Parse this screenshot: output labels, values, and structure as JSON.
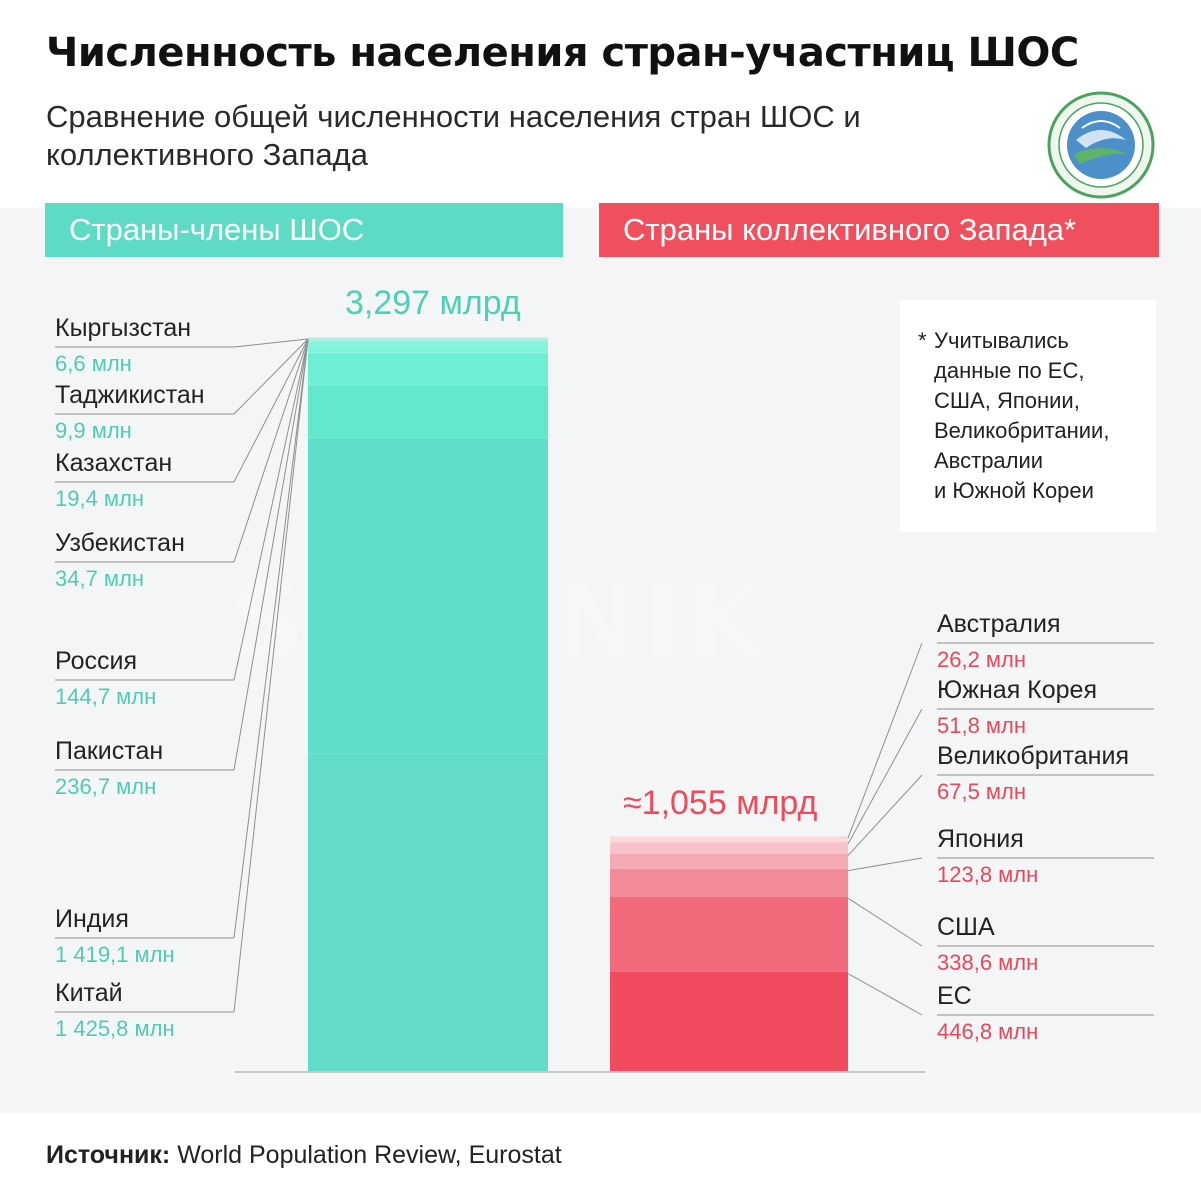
{
  "title": "Численность населения стран-участниц ШОС",
  "subtitle": "Сравнение общей численности населения стран ШОС и коллективного Запада",
  "headers": {
    "sco": "Страны-члены ШОС",
    "west": "Страны коллективного Запада*"
  },
  "note": {
    "star": "*",
    "text": "Учитывались\nданные по ЕС,\nСША, Японии,\nВеликобритании,\nАвстралии\nи Южной Кореи"
  },
  "watermark": "SPUTNIK",
  "source": {
    "label": "Источник:",
    "text": "World Population Review, Eurostat"
  },
  "colors": {
    "sco_header": "#5ddbc4",
    "west_header": "#f0505e",
    "sco_value": "#4fcbb4",
    "west_value": "#e8485a",
    "panel": "#f4f5f7"
  },
  "chart_data": {
    "type": "bar",
    "stacked": true,
    "unit": "млн",
    "stacks": [
      {
        "name": "Страны-члены ШОС",
        "total_label": "3,297 млрд",
        "total": 3297,
        "segments": [
          {
            "name": "Кыргызстан",
            "value": 6.6,
            "label": "6,6 млн",
            "color": "#bdf3e6"
          },
          {
            "name": "Таджикистан",
            "value": 9.9,
            "label": "9,9 млн",
            "color": "#9ff2e0"
          },
          {
            "name": "Казахстан",
            "value": 19.4,
            "label": "19,4 млн",
            "color": "#8cf3dc"
          },
          {
            "name": "Узбекистан",
            "value": 34.7,
            "label": "34,7 млн",
            "color": "#7ef4da"
          },
          {
            "name": "Россия",
            "value": 144.7,
            "label": "144,7 млн",
            "color": "#6eefd3"
          },
          {
            "name": "Пакистан",
            "value": 236.7,
            "label": "236,7 млн",
            "color": "#63e8cd"
          },
          {
            "name": "Индия",
            "value": 1419.1,
            "label": "1 419,1 млн",
            "color": "#5fdfc7"
          },
          {
            "name": "Китай",
            "value": 1425.8,
            "label": "1 425,8 млн",
            "color": "#61dcc6"
          }
        ]
      },
      {
        "name": "Страны коллективного Запада",
        "total_label": "≈1,055 млрд",
        "total": 1055,
        "segments": [
          {
            "name": "Австралия",
            "value": 26.2,
            "label": "26,2 млн",
            "color": "#fbd9dd"
          },
          {
            "name": "Южная Корея",
            "value": 51.8,
            "label": "51,8 млн",
            "color": "#f8c2c8"
          },
          {
            "name": "Великобритания",
            "value": 67.5,
            "label": "67,5 млн",
            "color": "#f5aab3"
          },
          {
            "name": "Япония",
            "value": 123.8,
            "label": "123,8 млн",
            "color": "#f28a98"
          },
          {
            "name": "США",
            "value": 338.6,
            "label": "338,6 млн",
            "color": "#f06a7c"
          },
          {
            "name": "ЕС",
            "value": 446.8,
            "label": "446,8 млн",
            "color": "#f24a5f"
          }
        ]
      }
    ]
  }
}
